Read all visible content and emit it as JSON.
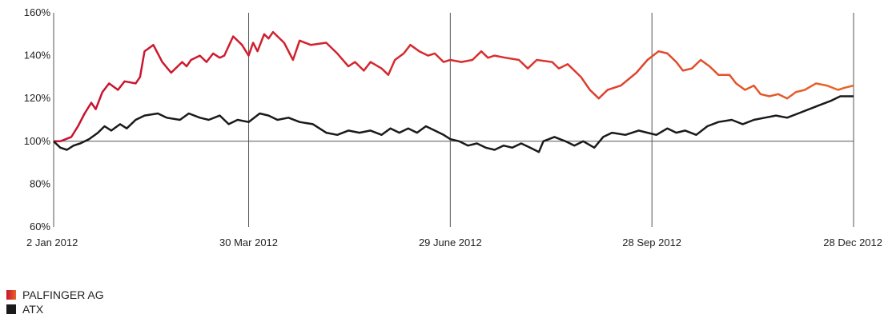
{
  "chart_data": {
    "type": "line",
    "title": "",
    "xlabel": "",
    "ylabel": "",
    "ylim": [
      60,
      160
    ],
    "y_ticks": [
      "160%",
      "140%",
      "120%",
      "100%",
      "80%",
      "60%"
    ],
    "y_tick_values": [
      160,
      140,
      120,
      100,
      80,
      60
    ],
    "x_ticks": [
      "2 Jan 2012",
      "30 Mar 2012",
      "29 June 2012",
      "28 Sep 2012",
      "28 Dec 2012"
    ],
    "x_tick_dates": [
      "2012-01-02",
      "2012-03-30",
      "2012-06-29",
      "2012-09-28",
      "2012-12-28"
    ],
    "xlim": [
      "2012-01-02",
      "2012-12-28"
    ],
    "reference_line": 100,
    "grid": "vertical lines at x ticks",
    "legend_position": "bottom-left",
    "series": [
      {
        "name": "PALFINGER AG",
        "color_start": "#c8102e",
        "color_end": "#e8662a",
        "points": [
          [
            "2012-01-02",
            100
          ],
          [
            "2012-01-05",
            100
          ],
          [
            "2012-01-10",
            102
          ],
          [
            "2012-01-13",
            107
          ],
          [
            "2012-01-16",
            113
          ],
          [
            "2012-01-19",
            118
          ],
          [
            "2012-01-21",
            115
          ],
          [
            "2012-01-24",
            123
          ],
          [
            "2012-01-27",
            127
          ],
          [
            "2012-01-31",
            124
          ],
          [
            "2012-02-03",
            128
          ],
          [
            "2012-02-08",
            127
          ],
          [
            "2012-02-10",
            130
          ],
          [
            "2012-02-12",
            142
          ],
          [
            "2012-02-16",
            145
          ],
          [
            "2012-02-20",
            137
          ],
          [
            "2012-02-24",
            132
          ],
          [
            "2012-02-29",
            137
          ],
          [
            "2012-03-02",
            135
          ],
          [
            "2012-03-04",
            138
          ],
          [
            "2012-03-08",
            140
          ],
          [
            "2012-03-11",
            137
          ],
          [
            "2012-03-14",
            141
          ],
          [
            "2012-03-17",
            139
          ],
          [
            "2012-03-19",
            140
          ],
          [
            "2012-03-23",
            149
          ],
          [
            "2012-03-27",
            145
          ],
          [
            "2012-03-30",
            140
          ],
          [
            "2012-04-01",
            146
          ],
          [
            "2012-04-03",
            142
          ],
          [
            "2012-04-06",
            150
          ],
          [
            "2012-04-08",
            148
          ],
          [
            "2012-04-10",
            151
          ],
          [
            "2012-04-15",
            146
          ],
          [
            "2012-04-19",
            138
          ],
          [
            "2012-04-22",
            147
          ],
          [
            "2012-04-27",
            145
          ],
          [
            "2012-05-04",
            146
          ],
          [
            "2012-05-09",
            141
          ],
          [
            "2012-05-14",
            135
          ],
          [
            "2012-05-17",
            137
          ],
          [
            "2012-05-21",
            133
          ],
          [
            "2012-05-24",
            137
          ],
          [
            "2012-05-29",
            134
          ],
          [
            "2012-06-01",
            131
          ],
          [
            "2012-06-04",
            138
          ],
          [
            "2012-06-08",
            141
          ],
          [
            "2012-06-11",
            145
          ],
          [
            "2012-06-15",
            142
          ],
          [
            "2012-06-19",
            140
          ],
          [
            "2012-06-22",
            141
          ],
          [
            "2012-06-26",
            137
          ],
          [
            "2012-06-29",
            138
          ],
          [
            "2012-07-04",
            137
          ],
          [
            "2012-07-09",
            138
          ],
          [
            "2012-07-13",
            142
          ],
          [
            "2012-07-16",
            139
          ],
          [
            "2012-07-19",
            140
          ],
          [
            "2012-07-24",
            139
          ],
          [
            "2012-07-30",
            138
          ],
          [
            "2012-08-03",
            134
          ],
          [
            "2012-08-07",
            138
          ],
          [
            "2012-08-14",
            137
          ],
          [
            "2012-08-17",
            134
          ],
          [
            "2012-08-21",
            136
          ],
          [
            "2012-08-27",
            130
          ],
          [
            "2012-08-31",
            124
          ],
          [
            "2012-09-04",
            120
          ],
          [
            "2012-09-08",
            124
          ],
          [
            "2012-09-14",
            126
          ],
          [
            "2012-09-21",
            132
          ],
          [
            "2012-09-26",
            138
          ],
          [
            "2012-10-01",
            142
          ],
          [
            "2012-10-05",
            141
          ],
          [
            "2012-10-09",
            137
          ],
          [
            "2012-10-12",
            133
          ],
          [
            "2012-10-16",
            134
          ],
          [
            "2012-10-20",
            138
          ],
          [
            "2012-10-24",
            135
          ],
          [
            "2012-10-28",
            131
          ],
          [
            "2012-11-02",
            131
          ],
          [
            "2012-11-05",
            127
          ],
          [
            "2012-11-09",
            124
          ],
          [
            "2012-11-13",
            126
          ],
          [
            "2012-11-16",
            122
          ],
          [
            "2012-11-20",
            121
          ],
          [
            "2012-11-24",
            122
          ],
          [
            "2012-11-28",
            120
          ],
          [
            "2012-12-02",
            123
          ],
          [
            "2012-12-06",
            124
          ],
          [
            "2012-12-11",
            127
          ],
          [
            "2012-12-16",
            126
          ],
          [
            "2012-12-21",
            124
          ],
          [
            "2012-12-24",
            125
          ],
          [
            "2012-12-28",
            126
          ]
        ]
      },
      {
        "name": "ATX",
        "color": "#1a1a1a",
        "points": [
          [
            "2012-01-02",
            100
          ],
          [
            "2012-01-05",
            97
          ],
          [
            "2012-01-08",
            96
          ],
          [
            "2012-01-11",
            98
          ],
          [
            "2012-01-14",
            99
          ],
          [
            "2012-01-18",
            101
          ],
          [
            "2012-01-22",
            104
          ],
          [
            "2012-01-25",
            107
          ],
          [
            "2012-01-28",
            105
          ],
          [
            "2012-02-01",
            108
          ],
          [
            "2012-02-04",
            106
          ],
          [
            "2012-02-08",
            110
          ],
          [
            "2012-02-12",
            112
          ],
          [
            "2012-02-18",
            113
          ],
          [
            "2012-02-22",
            111
          ],
          [
            "2012-02-28",
            110
          ],
          [
            "2012-03-03",
            113
          ],
          [
            "2012-03-08",
            111
          ],
          [
            "2012-03-12",
            110
          ],
          [
            "2012-03-17",
            112
          ],
          [
            "2012-03-21",
            108
          ],
          [
            "2012-03-25",
            110
          ],
          [
            "2012-03-30",
            109
          ],
          [
            "2012-04-04",
            113
          ],
          [
            "2012-04-08",
            112
          ],
          [
            "2012-04-12",
            110
          ],
          [
            "2012-04-17",
            111
          ],
          [
            "2012-04-22",
            109
          ],
          [
            "2012-04-28",
            108
          ],
          [
            "2012-05-04",
            104
          ],
          [
            "2012-05-09",
            103
          ],
          [
            "2012-05-14",
            105
          ],
          [
            "2012-05-19",
            104
          ],
          [
            "2012-05-24",
            105
          ],
          [
            "2012-05-29",
            103
          ],
          [
            "2012-06-02",
            106
          ],
          [
            "2012-06-06",
            104
          ],
          [
            "2012-06-10",
            106
          ],
          [
            "2012-06-14",
            104
          ],
          [
            "2012-06-18",
            107
          ],
          [
            "2012-06-22",
            105
          ],
          [
            "2012-06-26",
            103
          ],
          [
            "2012-06-29",
            101
          ],
          [
            "2012-07-03",
            100
          ],
          [
            "2012-07-07",
            98
          ],
          [
            "2012-07-11",
            99
          ],
          [
            "2012-07-15",
            97
          ],
          [
            "2012-07-19",
            96
          ],
          [
            "2012-07-23",
            98
          ],
          [
            "2012-07-27",
            97
          ],
          [
            "2012-07-31",
            99
          ],
          [
            "2012-08-04",
            97
          ],
          [
            "2012-08-08",
            95
          ],
          [
            "2012-08-10",
            100
          ],
          [
            "2012-08-15",
            102
          ],
          [
            "2012-08-20",
            100
          ],
          [
            "2012-08-24",
            98
          ],
          [
            "2012-08-28",
            100
          ],
          [
            "2012-09-02",
            97
          ],
          [
            "2012-09-06",
            102
          ],
          [
            "2012-09-10",
            104
          ],
          [
            "2012-09-16",
            103
          ],
          [
            "2012-09-22",
            105
          ],
          [
            "2012-09-26",
            104
          ],
          [
            "2012-09-30",
            103
          ],
          [
            "2012-10-05",
            106
          ],
          [
            "2012-10-09",
            104
          ],
          [
            "2012-10-13",
            105
          ],
          [
            "2012-10-18",
            103
          ],
          [
            "2012-10-23",
            107
          ],
          [
            "2012-10-28",
            109
          ],
          [
            "2012-11-03",
            110
          ],
          [
            "2012-11-08",
            108
          ],
          [
            "2012-11-13",
            110
          ],
          [
            "2012-11-18",
            111
          ],
          [
            "2012-11-23",
            112
          ],
          [
            "2012-11-28",
            111
          ],
          [
            "2012-12-03",
            113
          ],
          [
            "2012-12-08",
            115
          ],
          [
            "2012-12-13",
            117
          ],
          [
            "2012-12-18",
            119
          ],
          [
            "2012-12-22",
            121
          ],
          [
            "2012-12-28",
            121
          ]
        ]
      }
    ]
  },
  "legend": [
    {
      "label": "PALFINGER AG",
      "color": "#e0452a"
    },
    {
      "label": "ATX",
      "color": "#1a1a1a"
    }
  ]
}
